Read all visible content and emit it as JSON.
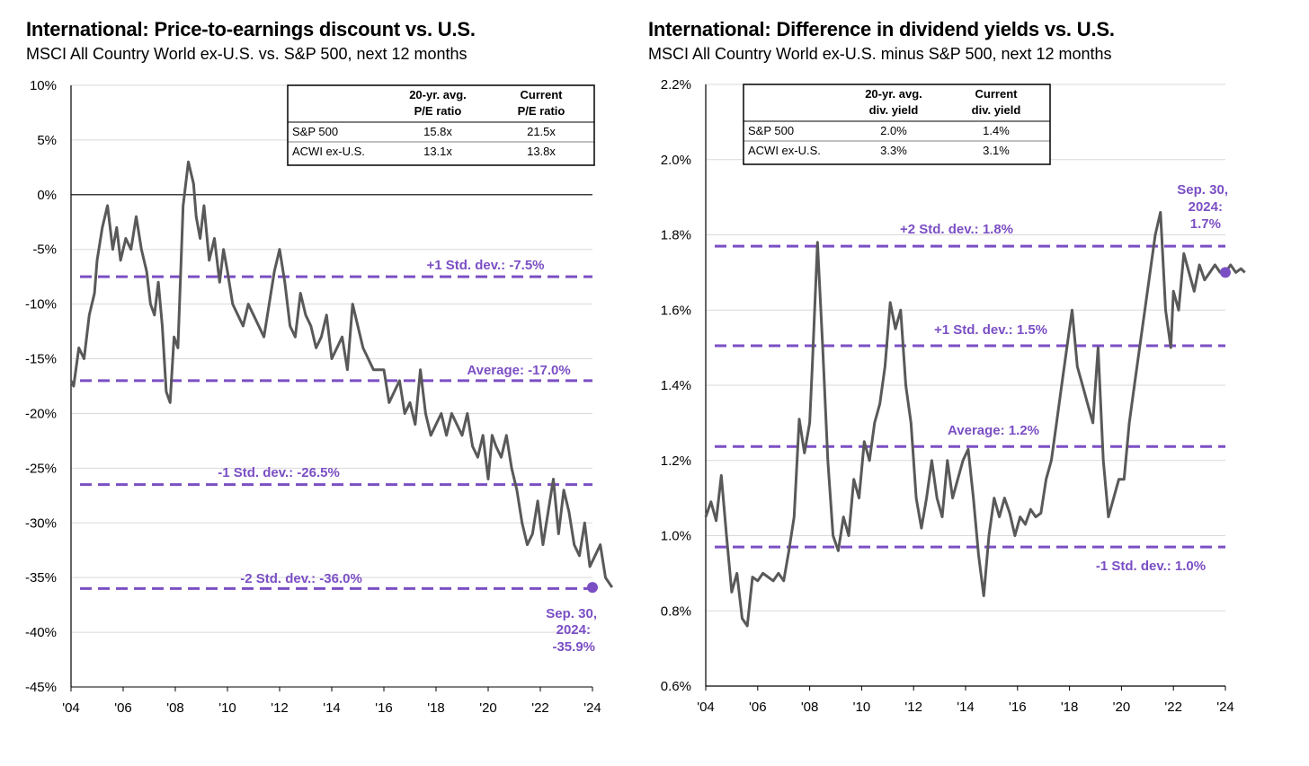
{
  "charts": [
    {
      "title": "International: Price-to-earnings discount vs. U.S.",
      "subtitle": "MSCI All Country World ex-U.S. vs. S&P 500, next 12 months",
      "table": {
        "headers": [
          "20-yr. avg.",
          "P/E ratio",
          "Current",
          "P/E ratio"
        ],
        "rows": [
          {
            "label": "S&P 500",
            "avg": "15.8x",
            "current": "21.5x"
          },
          {
            "label": "ACWI ex-U.S.",
            "avg": "13.1x",
            "current": "13.8x"
          }
        ]
      },
      "annotations": {
        "plus1": "+1 Std. dev.: -7.5%",
        "average": "Average: -17.0%",
        "minus1": "-1 Std. dev.: -26.5%",
        "minus2": "-2 Std. dev.: -36.0%",
        "current": [
          "Sep. 30,",
          "2024:",
          "-35.9%"
        ]
      },
      "y_tick_labels": [
        "10%",
        "5%",
        "0%",
        "-5%",
        "-10%",
        "-15%",
        "-20%",
        "-25%",
        "-30%",
        "-35%",
        "-40%",
        "-45%"
      ],
      "x_tick_labels": [
        "'04",
        "'06",
        "'08",
        "'10",
        "'12",
        "'14",
        "'16",
        "'18",
        "'20",
        "'22",
        "'24"
      ]
    },
    {
      "title": "International: Difference in dividend yields vs. U.S.",
      "subtitle": "MSCI All Country World ex-U.S. minus S&P 500, next 12 months",
      "table": {
        "headers": [
          "20-yr. avg.",
          "div. yield",
          "Current",
          "div. yield"
        ],
        "rows": [
          {
            "label": "S&P 500",
            "avg": "2.0%",
            "current": "1.4%"
          },
          {
            "label": "ACWI ex-U.S.",
            "avg": "3.3%",
            "current": "3.1%"
          }
        ]
      },
      "annotations": {
        "plus2": "+2 Std. dev.: 1.8%",
        "plus1": "+1 Std. dev.: 1.5%",
        "average": "Average: 1.2%",
        "minus1": "-1 Std. dev.: 1.0%",
        "current": [
          "Sep. 30,",
          "2024:",
          "1.7%"
        ]
      },
      "y_tick_labels": [
        "2.2%",
        "2.0%",
        "1.8%",
        "1.6%",
        "1.4%",
        "1.2%",
        "1.0%",
        "0.8%",
        "0.6%"
      ],
      "x_tick_labels": [
        "'04",
        "'06",
        "'08",
        "'10",
        "'12",
        "'14",
        "'16",
        "'18",
        "'20",
        "'22",
        "'24"
      ]
    }
  ],
  "colors": {
    "series": "#595959",
    "reference": "#7b4fc4",
    "grid": "#d9d9d9",
    "axis": "#000000"
  },
  "chart_data": [
    {
      "type": "line",
      "title": "International: Price-to-earnings discount vs. U.S.",
      "ylabel": "",
      "xlabel": "",
      "ylim": [
        -45,
        10
      ],
      "xlim": [
        2004,
        2024
      ],
      "yticks": [
        10,
        5,
        0,
        -5,
        -10,
        -15,
        -20,
        -25,
        -30,
        -35,
        -40,
        -45
      ],
      "xticks": [
        2004,
        2006,
        2008,
        2010,
        2012,
        2014,
        2016,
        2018,
        2020,
        2022,
        2024
      ],
      "grid": true,
      "reference_lines": [
        {
          "label": "+1 Std. dev.: -7.5%",
          "value": -7.5
        },
        {
          "label": "Average: -17.0%",
          "value": -17.0
        },
        {
          "label": "-1 Std. dev.: -26.5%",
          "value": -26.5
        },
        {
          "label": "-2 Std. dev.: -36.0%",
          "value": -36.0
        }
      ],
      "end_point": {
        "label": "Sep. 30, 2024: -35.9%",
        "x": 2024.75,
        "y": -35.9
      },
      "x": [
        2004.0,
        2004.1,
        2004.3,
        2004.5,
        2004.7,
        2004.9,
        2005.0,
        2005.2,
        2005.4,
        2005.6,
        2005.75,
        2005.9,
        2006.1,
        2006.3,
        2006.5,
        2006.7,
        2006.9,
        2007.05,
        2007.2,
        2007.35,
        2007.5,
        2007.65,
        2007.8,
        2007.95,
        2008.1,
        2008.3,
        2008.5,
        2008.7,
        2008.8,
        2008.95,
        2009.1,
        2009.3,
        2009.5,
        2009.7,
        2009.85,
        2010.0,
        2010.2,
        2010.4,
        2010.6,
        2010.8,
        2011.0,
        2011.2,
        2011.4,
        2011.6,
        2011.8,
        2012.0,
        2012.2,
        2012.4,
        2012.6,
        2012.8,
        2013.0,
        2013.2,
        2013.4,
        2013.6,
        2013.8,
        2014.0,
        2014.2,
        2014.4,
        2014.6,
        2014.8,
        2015.0,
        2015.2,
        2015.4,
        2015.6,
        2015.8,
        2016.0,
        2016.2,
        2016.4,
        2016.6,
        2016.8,
        2017.0,
        2017.2,
        2017.4,
        2017.6,
        2017.8,
        2018.0,
        2018.2,
        2018.4,
        2018.6,
        2018.8,
        2019.0,
        2019.2,
        2019.4,
        2019.6,
        2019.8,
        2020.0,
        2020.15,
        2020.3,
        2020.5,
        2020.7,
        2020.9,
        2021.1,
        2021.3,
        2021.5,
        2021.7,
        2021.9,
        2022.1,
        2022.3,
        2022.5,
        2022.7,
        2022.9,
        2023.1,
        2023.3,
        2023.5,
        2023.7,
        2023.9,
        2024.1,
        2024.3,
        2024.5,
        2024.75
      ],
      "series": [
        {
          "values": [
            -17,
            -17.5,
            -14,
            -15,
            -11,
            -9,
            -6,
            -3,
            -1,
            -5,
            -3,
            -6,
            -4,
            -5,
            -2,
            -5,
            -7,
            -10,
            -11,
            -8,
            -12,
            -18,
            -19,
            -13,
            -14,
            -1,
            3,
            1,
            -2,
            -4,
            -1,
            -6,
            -4,
            -8,
            -5,
            -7,
            -10,
            -11,
            -12,
            -10,
            -11,
            -12,
            -13,
            -10,
            -7,
            -5,
            -8,
            -12,
            -13,
            -9,
            -11,
            -12,
            -14,
            -13,
            -11,
            -15,
            -14,
            -13,
            -16,
            -10,
            -12,
            -14,
            -15,
            -16,
            -16,
            -16,
            -19,
            -18,
            -17,
            -20,
            -19,
            -21,
            -16,
            -20,
            -22,
            -21,
            -20,
            -22,
            -20,
            -21,
            -22,
            -20,
            -23,
            -24,
            -22,
            -26,
            -22,
            -23,
            -24,
            -22,
            -25,
            -27,
            -30,
            -32,
            -31,
            -28,
            -32,
            -29,
            -26,
            -31,
            -27,
            -29,
            -32,
            -33,
            -30,
            -34,
            -33,
            -32,
            -35,
            -35.9
          ]
        }
      ]
    },
    {
      "type": "line",
      "title": "International: Difference in dividend yields vs. U.S.",
      "ylabel": "",
      "xlabel": "",
      "ylim": [
        0.6,
        2.2
      ],
      "xlim": [
        2004,
        2024
      ],
      "yticks": [
        2.2,
        2.0,
        1.8,
        1.6,
        1.4,
        1.2,
        1.0,
        0.8,
        0.6
      ],
      "xticks": [
        2004,
        2006,
        2008,
        2010,
        2012,
        2014,
        2016,
        2018,
        2020,
        2022,
        2024
      ],
      "grid": true,
      "reference_lines": [
        {
          "label": "+2 Std. dev.: 1.8%",
          "value": 1.77
        },
        {
          "label": "+1 Std. dev.: 1.5%",
          "value": 1.505
        },
        {
          "label": "Average: 1.2%",
          "value": 1.237
        },
        {
          "label": "-1 Std. dev.: 1.0%",
          "value": 0.97
        }
      ],
      "end_point": {
        "label": "Sep. 30, 2024: 1.7%",
        "x": 2024.75,
        "y": 1.7
      },
      "x": [
        2004.0,
        2004.2,
        2004.4,
        2004.6,
        2004.8,
        2005.0,
        2005.2,
        2005.4,
        2005.6,
        2005.8,
        2006.0,
        2006.2,
        2006.4,
        2006.6,
        2006.8,
        2007.0,
        2007.2,
        2007.4,
        2007.6,
        2007.8,
        2008.0,
        2008.1,
        2008.3,
        2008.5,
        2008.7,
        2008.9,
        2009.1,
        2009.3,
        2009.5,
        2009.7,
        2009.9,
        2010.1,
        2010.3,
        2010.5,
        2010.7,
        2010.9,
        2011.1,
        2011.3,
        2011.5,
        2011.7,
        2011.9,
        2012.1,
        2012.3,
        2012.5,
        2012.7,
        2012.9,
        2013.1,
        2013.3,
        2013.5,
        2013.7,
        2013.9,
        2014.1,
        2014.3,
        2014.5,
        2014.7,
        2014.9,
        2015.1,
        2015.3,
        2015.5,
        2015.7,
        2015.9,
        2016.1,
        2016.3,
        2016.5,
        2016.7,
        2016.9,
        2017.1,
        2017.3,
        2017.5,
        2017.7,
        2017.9,
        2018.1,
        2018.3,
        2018.5,
        2018.7,
        2018.9,
        2019.1,
        2019.3,
        2019.5,
        2019.7,
        2019.9,
        2020.1,
        2020.3,
        2020.5,
        2020.7,
        2020.9,
        2021.1,
        2021.3,
        2021.5,
        2021.7,
        2021.9,
        2022.0,
        2022.2,
        2022.4,
        2022.6,
        2022.8,
        2023.0,
        2023.2,
        2023.4,
        2023.6,
        2023.8,
        2024.0,
        2024.2,
        2024.4,
        2024.6,
        2024.75
      ],
      "series": [
        {
          "values": [
            1.05,
            1.09,
            1.04,
            1.16,
            1.0,
            0.85,
            0.9,
            0.78,
            0.76,
            0.89,
            0.88,
            0.9,
            0.89,
            0.88,
            0.9,
            0.88,
            0.96,
            1.05,
            1.31,
            1.22,
            1.3,
            1.45,
            1.78,
            1.5,
            1.2,
            1.0,
            0.96,
            1.05,
            1.0,
            1.15,
            1.1,
            1.25,
            1.2,
            1.3,
            1.35,
            1.45,
            1.62,
            1.55,
            1.6,
            1.4,
            1.3,
            1.1,
            1.02,
            1.1,
            1.2,
            1.1,
            1.05,
            1.2,
            1.1,
            1.15,
            1.2,
            1.23,
            1.1,
            0.95,
            0.84,
            1.0,
            1.1,
            1.05,
            1.1,
            1.06,
            1.0,
            1.05,
            1.03,
            1.07,
            1.05,
            1.06,
            1.15,
            1.2,
            1.3,
            1.4,
            1.5,
            1.6,
            1.45,
            1.4,
            1.35,
            1.3,
            1.5,
            1.2,
            1.05,
            1.1,
            1.15,
            1.15,
            1.3,
            1.4,
            1.5,
            1.6,
            1.7,
            1.8,
            1.86,
            1.6,
            1.5,
            1.65,
            1.6,
            1.75,
            1.7,
            1.65,
            1.72,
            1.68,
            1.7,
            1.72,
            1.7,
            1.7,
            1.72,
            1.7,
            1.71,
            1.7
          ]
        }
      ]
    }
  ]
}
